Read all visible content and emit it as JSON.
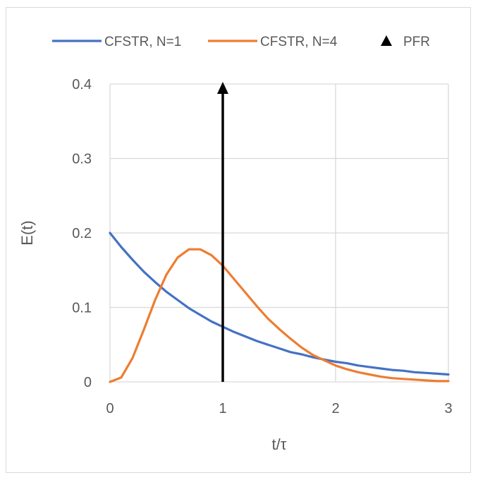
{
  "chart_data": {
    "type": "line",
    "title": "",
    "xlabel": "t/τ",
    "ylabel": "E(t)",
    "xlim": [
      0,
      3
    ],
    "ylim": [
      0,
      0.4
    ],
    "x_ticks": [
      "0",
      "1",
      "2",
      "3"
    ],
    "y_ticks": [
      "0",
      "0.1",
      "0.2",
      "0.3",
      "0.4"
    ],
    "grid": true,
    "legend_position": "top",
    "series": [
      {
        "name": "CFSTR, N=1",
        "color": "#4472c4",
        "x": [
          0,
          0.1,
          0.2,
          0.3,
          0.4,
          0.5,
          0.6,
          0.7,
          0.8,
          0.9,
          1.0,
          1.1,
          1.2,
          1.3,
          1.4,
          1.5,
          1.6,
          1.7,
          1.8,
          1.9,
          2.0,
          2.1,
          2.2,
          2.3,
          2.4,
          2.5,
          2.6,
          2.7,
          2.8,
          2.9,
          3.0
        ],
        "y": [
          0.2,
          0.181,
          0.164,
          0.148,
          0.134,
          0.121,
          0.11,
          0.099,
          0.09,
          0.081,
          0.074,
          0.067,
          0.061,
          0.055,
          0.05,
          0.045,
          0.04,
          0.037,
          0.033,
          0.03,
          0.027,
          0.025,
          0.022,
          0.02,
          0.018,
          0.016,
          0.015,
          0.013,
          0.012,
          0.011,
          0.01
        ]
      },
      {
        "name": "CFSTR, N=4",
        "color": "#ed7d31",
        "x": [
          0,
          0.1,
          0.2,
          0.3,
          0.4,
          0.5,
          0.6,
          0.7,
          0.8,
          0.9,
          1.0,
          1.1,
          1.2,
          1.3,
          1.4,
          1.5,
          1.6,
          1.7,
          1.8,
          1.9,
          2.0,
          2.1,
          2.2,
          2.3,
          2.4,
          2.5,
          2.6,
          2.7,
          2.8,
          2.9,
          3.0
        ],
        "y": [
          0,
          0.006,
          0.032,
          0.07,
          0.11,
          0.144,
          0.167,
          0.178,
          0.178,
          0.17,
          0.156,
          0.138,
          0.12,
          0.102,
          0.085,
          0.071,
          0.058,
          0.046,
          0.036,
          0.029,
          0.022,
          0.017,
          0.013,
          0.01,
          0.007,
          0.005,
          0.004,
          0.003,
          0.002,
          0.001,
          0.001
        ]
      }
    ],
    "markers": [
      {
        "name": "PFR",
        "type": "arrow",
        "color": "#000000",
        "x": 1,
        "y_from": 0,
        "y_to": 0.4
      }
    ]
  }
}
